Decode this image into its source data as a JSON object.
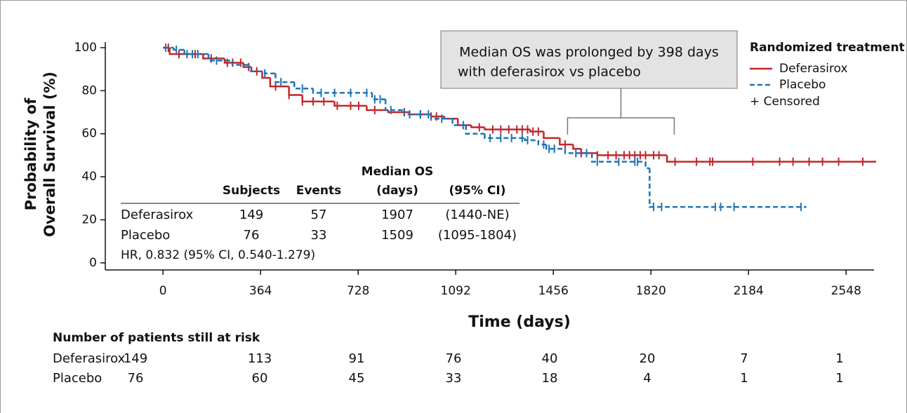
{
  "chart_data": {
    "type": "km",
    "xlabel": "Time (days)",
    "ylabel": [
      "Probability of",
      "Overall Survival (%)"
    ],
    "xlim": [
      -215,
      2652
    ],
    "ylim": [
      -3.3,
      102.6
    ],
    "xticks": [
      0,
      364,
      728,
      1092,
      1456,
      1820,
      2184,
      2548
    ],
    "yticks": [
      0,
      20,
      40,
      60,
      80,
      100
    ],
    "series": [
      {
        "name": "Deferasirox",
        "color": "#c1272d",
        "dashed": false,
        "x": [
          0,
          25,
          150,
          230,
          300,
          330,
          370,
          400,
          470,
          520,
          640,
          760,
          840,
          920,
          1000,
          1050,
          1100,
          1150,
          1200,
          1370,
          1420,
          1480,
          1530,
          1560,
          1620,
          1880,
          2660
        ],
        "values": [
          100,
          97,
          95,
          93,
          91,
          89,
          86,
          82,
          78,
          75,
          73,
          71,
          70,
          69,
          68,
          67,
          64,
          63,
          62,
          61,
          58,
          55,
          53,
          51,
          50,
          47,
          47
        ],
        "censored_x": [
          20,
          60,
          120,
          180,
          240,
          260,
          290,
          320,
          350,
          420,
          470,
          520,
          560,
          600,
          650,
          700,
          730,
          790,
          900,
          960,
          1000,
          1020,
          1180,
          1230,
          1260,
          1290,
          1320,
          1340,
          1360,
          1380,
          1400,
          1500,
          1560,
          1620,
          1660,
          1690,
          1720,
          1740,
          1760,
          1780,
          1800,
          1830,
          1850,
          1910,
          1990,
          2040,
          2050,
          2200,
          2300,
          2350,
          2410,
          2460,
          2520,
          2610
        ]
      },
      {
        "name": "Placebo",
        "color": "#1f73b4",
        "dashed": true,
        "x": [
          0,
          40,
          80,
          170,
          260,
          320,
          380,
          420,
          490,
          560,
          780,
          830,
          900,
          1000,
          1080,
          1130,
          1200,
          1350,
          1400,
          1430,
          1500,
          1600,
          1800,
          1815,
          2400
        ],
        "values": [
          100,
          99,
          97,
          94,
          92,
          89,
          88,
          84,
          81,
          79,
          76,
          71,
          69,
          67,
          64,
          60,
          58,
          57,
          55,
          53,
          51,
          47,
          44,
          26,
          26
        ],
        "censored_x": [
          10,
          50,
          90,
          110,
          130,
          200,
          380,
          440,
          520,
          590,
          640,
          700,
          760,
          790,
          810,
          850,
          920,
          960,
          990,
          1040,
          1120,
          1220,
          1260,
          1300,
          1340,
          1360,
          1420,
          1440,
          1460,
          1540,
          1580,
          1620,
          1700,
          1760,
          1770,
          1830,
          1860,
          2060,
          2080,
          2130,
          2380
        ]
      }
    ],
    "legend": {
      "title": "Randomized treatment",
      "censored": "+ Censored"
    },
    "annotation": [
      "Median OS was prolonged by 398 days",
      "with deferasirox vs placebo"
    ],
    "summary": {
      "header_top": "Median OS",
      "headers": [
        "Subjects",
        "Events",
        "(days)",
        "(95% CI)"
      ],
      "rows": [
        {
          "name": "Deferasirox",
          "subjects": 149,
          "events": 57,
          "median": 1907,
          "ci": "(1440-NE)"
        },
        {
          "name": "Placebo",
          "subjects": 76,
          "events": 33,
          "median": 1509,
          "ci": "(1095-1804)"
        }
      ],
      "hr": "HR, 0.832 (95% CI, 0.540-1.279)"
    },
    "risk": {
      "title": "Number of patients still at risk",
      "rows": [
        {
          "name": "Deferasirox",
          "values": [
            149,
            113,
            91,
            76,
            40,
            20,
            7,
            1
          ]
        },
        {
          "name": "Placebo",
          "values": [
            76,
            60,
            45,
            33,
            18,
            4,
            1,
            1
          ]
        }
      ]
    }
  }
}
